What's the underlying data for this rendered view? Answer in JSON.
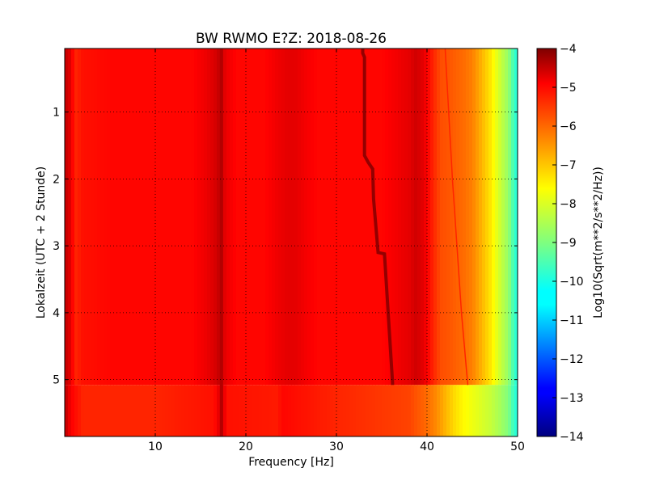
{
  "chart_data": {
    "type": "heatmap",
    "title": "BW RWMO E?Z: 2018-08-26",
    "xlabel": "Frequency [Hz]",
    "ylabel": "Lokalzeit (UTC + 2 Stunde)",
    "xlim": [
      0,
      50
    ],
    "ylim": [
      5.85,
      0.05
    ],
    "y_inverted": true,
    "grid": true,
    "x_ticks": [
      10,
      20,
      30,
      40,
      50
    ],
    "x_tick_labels": [
      "10",
      "20",
      "30",
      "40",
      "50"
    ],
    "y_ticks": [
      1,
      2,
      3,
      4,
      5
    ],
    "y_tick_labels": [
      "1",
      "2",
      "3",
      "4",
      "5"
    ],
    "colorbar": {
      "label": "Log10(Sqrt(m**2/s**2/Hz))",
      "colormap": "jet",
      "range": [
        -14,
        -4
      ],
      "ticks": [
        -4,
        -5,
        -6,
        -7,
        -8,
        -9,
        -10,
        -11,
        -12,
        -13,
        -14
      ],
      "tick_labels": [
        "−4",
        "−5",
        "−6",
        "−7",
        "−8",
        "−9",
        "−10",
        "−11",
        "−12",
        "−13",
        "−14"
      ]
    },
    "background_profile": {
      "freq_hz": [
        0,
        0.3,
        0.6,
        1.2,
        2,
        5,
        10,
        14,
        15.5,
        16.5,
        17,
        17.5,
        18,
        19,
        22,
        23.5,
        24.5,
        25.5,
        27,
        28,
        31,
        35,
        38,
        38.8,
        39.6,
        40.5,
        41.5,
        42.5,
        44,
        45,
        46,
        47,
        48,
        49,
        49.5,
        50
      ],
      "level": [
        -5.0,
        -4.6,
        -5.0,
        -5.6,
        -5.4,
        -5.3,
        -5.3,
        -5.3,
        -5.1,
        -4.9,
        -4.7,
        -4.9,
        -5.1,
        -5.3,
        -5.3,
        -5.1,
        -5.0,
        -5.0,
        -5.2,
        -5.3,
        -5.3,
        -5.3,
        -5.0,
        -4.8,
        -5.0,
        -5.5,
        -6.0,
        -6.1,
        -6.3,
        -6.5,
        -7.0,
        -7.5,
        -8.2,
        -8.8,
        -9.5,
        -10.0
      ]
    },
    "upper_profile_time_h": 5.08,
    "late_profile": {
      "freq_hz": [
        0,
        0.3,
        0.6,
        2,
        10,
        16.5,
        17.3,
        18,
        23.5,
        24,
        30,
        38,
        40,
        41,
        42,
        43,
        44,
        45,
        46,
        47,
        48,
        49,
        49.5,
        50
      ],
      "level": [
        -5.0,
        -4.6,
        -5.2,
        -5.6,
        -5.6,
        -5.4,
        -4.8,
        -5.4,
        -5.5,
        -5.3,
        -5.6,
        -5.9,
        -6.3,
        -6.6,
        -7.0,
        -7.4,
        -7.7,
        -7.9,
        -8.1,
        -8.3,
        -8.6,
        -9.0,
        -9.6,
        -10.0
      ]
    },
    "tonal_lines": [
      {
        "name": "17 Hz line",
        "points": [
          [
            0.05,
            17.3
          ],
          [
            5.85,
            17.3
          ]
        ],
        "level": -4.5
      },
      {
        "name": "drifting tone",
        "points": [
          [
            0.05,
            32.9
          ],
          [
            0.12,
            32.9
          ],
          [
            0.18,
            33.1
          ],
          [
            1.65,
            33.1
          ],
          [
            1.75,
            33.5
          ],
          [
            1.85,
            34.0
          ],
          [
            2.3,
            34.1
          ],
          [
            3.1,
            34.6
          ],
          [
            3.12,
            35.3
          ],
          [
            5.05,
            36.2
          ],
          [
            5.08,
            36.2
          ]
        ],
        "level": -4.2
      },
      {
        "name": "faint drift",
        "points": [
          [
            0.05,
            42.0
          ],
          [
            2.0,
            42.8
          ],
          [
            4.0,
            43.8
          ],
          [
            5.08,
            44.5
          ]
        ],
        "level": -5.6
      }
    ]
  }
}
